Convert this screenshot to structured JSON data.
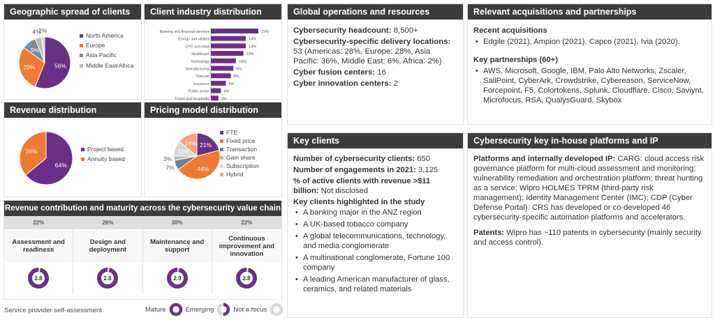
{
  "geo": {
    "title": "Geographic spread of clients",
    "chart_data": {
      "type": "pie",
      "labels": [
        "North America",
        "Europe",
        "Asia Pacific",
        "Middle East/Africa",
        ""
      ],
      "values": [
        56,
        29,
        9,
        4,
        2
      ],
      "colors": [
        "#6b2f86",
        "#ef7a34",
        "#7a8b99",
        "#b9bcbf",
        "#d9d9d9"
      ],
      "legend": [
        "North America",
        "Europe",
        "Asia Pacific",
        "Middle East/Africa"
      ],
      "data_labels": [
        "56%",
        "29%",
        "9%",
        "4%",
        "2%"
      ]
    }
  },
  "industry": {
    "title": "Client industry distribution",
    "chart_data": {
      "type": "bar",
      "orientation": "horizontal",
      "categories": [
        "Banking and financial services",
        "Energy and utilities",
        "CPG and retail",
        "Healthcare",
        "Technology",
        "Manufacturing",
        "Telecom",
        "Insurance",
        "Public sector",
        "Travel and hospitality"
      ],
      "values": [
        19,
        14,
        14,
        13,
        10,
        9,
        8,
        6,
        4,
        3
      ],
      "data_labels": [
        "19%",
        "14%",
        "14%",
        "13%",
        "10%",
        "9%",
        "8%",
        "6%",
        "4%",
        "3%"
      ],
      "color": "#6b2f86"
    }
  },
  "revenue": {
    "title": "Revenue distribution",
    "chart_data": {
      "type": "pie",
      "labels": [
        "Project based",
        "Annuity based"
      ],
      "values": [
        64,
        36
      ],
      "colors": [
        "#6b2f86",
        "#ef7a34"
      ],
      "data_labels": [
        "64%",
        "36%"
      ]
    }
  },
  "pricing": {
    "title": "Pricing model distribution",
    "chart_data": {
      "type": "pie",
      "labels": [
        "FTE",
        "Fixed price",
        "Transaction",
        "Gain share",
        "Subscription",
        "Hybrid"
      ],
      "values": [
        21,
        44,
        7,
        3,
        11,
        14
      ],
      "colors": [
        "#6b2f86",
        "#ef7a34",
        "#6f8491",
        "#b9bcbf",
        "#d6d8da",
        "#f4a57a"
      ],
      "data_labels": [
        "21%",
        "44%",
        "7%",
        "3%",
        "11%",
        "14%"
      ]
    }
  },
  "value_chain": {
    "title": "Revenue contribution and maturity across the cybersecurity value chain",
    "stages": [
      {
        "pct": "22%",
        "name": "Assessment and readiness",
        "score": "2.8"
      },
      {
        "pct": "26%",
        "name": "Design and deployment",
        "score": "2.8"
      },
      {
        "pct": "30%",
        "name": "Maintenance and support",
        "score": "2.9"
      },
      {
        "pct": "22%",
        "name": "Continuous improvement and innovation",
        "score": "2.8"
      }
    ],
    "footer": "Service provider self-assessment",
    "legend": {
      "mature": "Mature",
      "emerging": "Emerging",
      "not_focus": "Not a focus"
    }
  },
  "global_ops": {
    "title": "Global operations and resources",
    "headcount_label": "Cybersecurity headcount:",
    "headcount": " 8,500+",
    "delivery_label": "Cybersecurity-specific delivery locations:",
    "delivery": " 53 (Americas: 28%, Europe: 28%, Asia Pacific: 36%, Middle East: 6%, Africa: 2%)",
    "fusion_label": "Cyber fusion centers:",
    "fusion": " 16",
    "innovation_label": "Cyber innovation centers:",
    "innovation": " 2"
  },
  "acquisitions": {
    "title": "Relevant acquisitions and partnerships",
    "recent_label": "Recent acquisitions",
    "recent": [
      "Edgile (2021), Ampion (2021), Capco (2021), Ivia (2020)."
    ],
    "partners_label": "Key partnerships (60+)",
    "partners": [
      "AWS, Microsoft, Google, IBM, Palo Alto Networks, Zscaler, SailPoint, CyberArk, Crowdstrike, Cybereason, ServiceNow, Forcepoint, F5, Colortokens, Splunk, Cloudflare, Cisco, Saviynt, Microfocus,  RSA, QualysGuard, Skybox"
    ]
  },
  "key_clients": {
    "title": "Key clients",
    "num_label": "Number of cybersecurity clients:",
    "num": " 650",
    "eng_label": "Number of engagements in 2021:",
    "eng": " 3,125",
    "active_label": "% of active clients with revenue >$11 billion:",
    "active": " Not disclosed",
    "highlight_label": "Key clients highlighted in the study",
    "clients": [
      "A banking major in the ANZ region",
      "A UK-based tobacco company",
      "A global telecommunications, technology, and media conglomerate",
      "A multinational conglomerate, Fortune 100 company",
      "A leading American manufacturer of glass, ceramics, and related materials"
    ]
  },
  "platforms": {
    "title": "Cybersecurity key in-house platforms and IP",
    "platforms_label": "Platforms and internally developed IP:",
    "platforms": " CARG: cloud access risk governance platform for multi-cloud assessment and monitoring; vulnerability remediation and orchestration platform; threat hunting as a service; Wipro HOLMES TPRM (third-party risk management); Identity Management Center (IMC); CDP (Cyber Defense Portal). CRS has developed or co-developed 46 cybersecurity-specific automation platforms and accelerators.",
    "patents_label": "Patents:",
    "patents": " Wipro has ~110 patents in cybersecurity (mainly security and access control)."
  }
}
